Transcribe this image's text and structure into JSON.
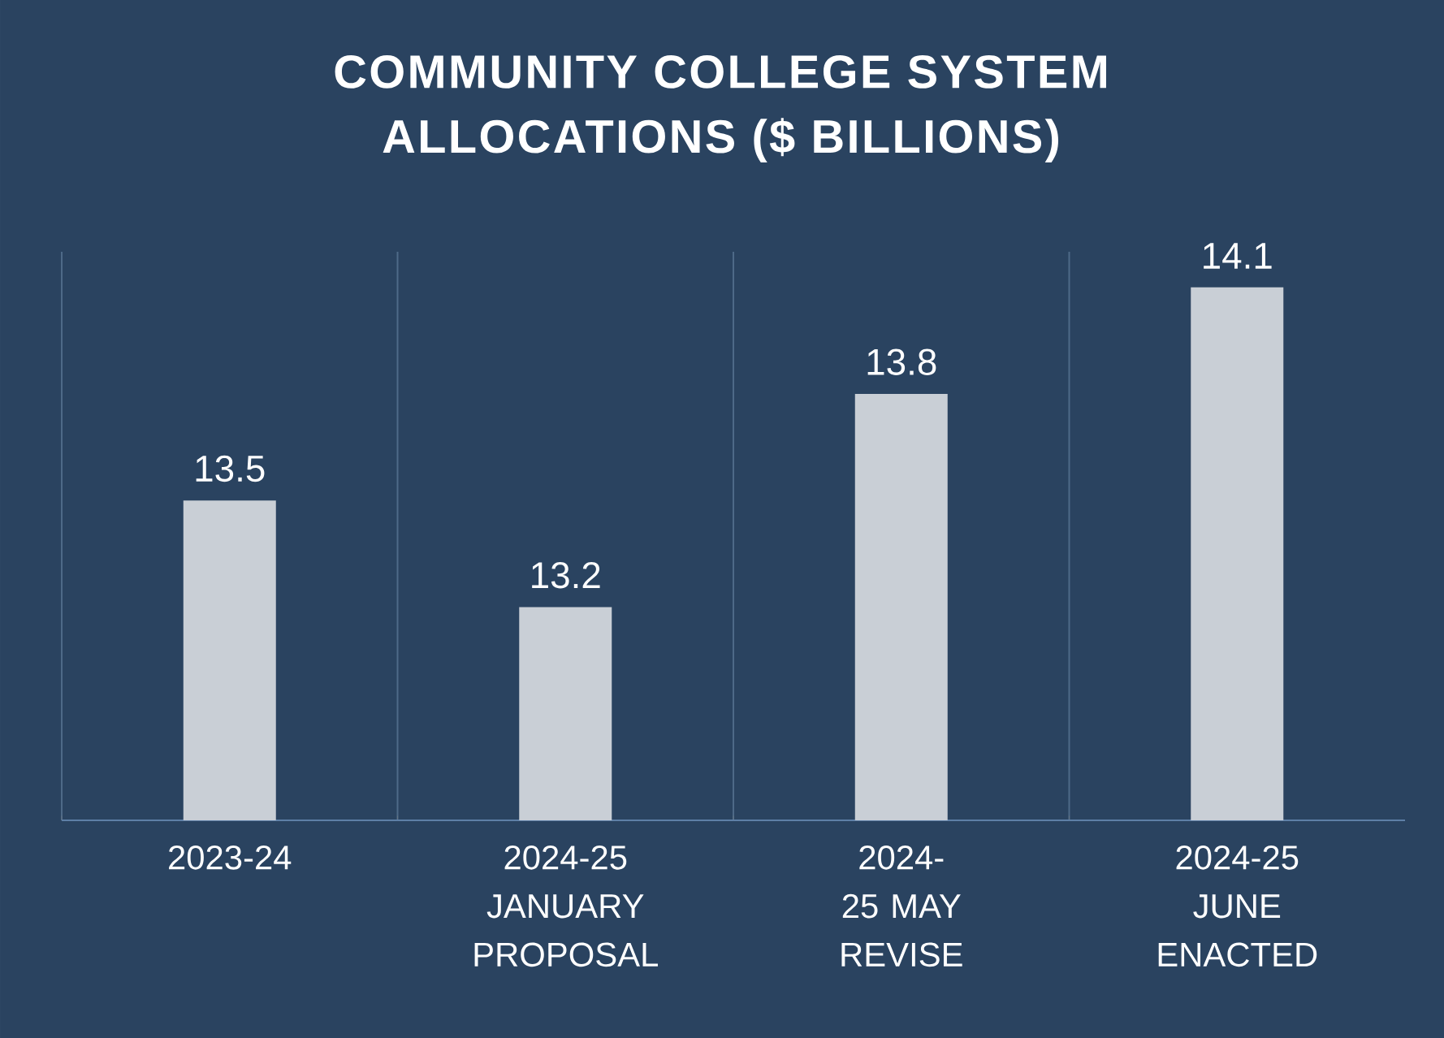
{
  "chart_data": {
    "type": "bar",
    "title": "COMMUNITY COLLEGE SYSTEM ALLOCATIONS ($ BILLIONS)",
    "categories": [
      "2023-24",
      "2024-25 JANUARY PROPOSAL",
      "2024-25 MAY REVISE",
      "2024-25 JUNE ENACTED"
    ],
    "values": [
      13.5,
      13.2,
      13.8,
      14.1
    ],
    "color": "#c9cfd6",
    "ylim": [
      12.6,
      14.2
    ],
    "tick_labels": "x",
    "grid": "x",
    "data_labels": true
  }
}
